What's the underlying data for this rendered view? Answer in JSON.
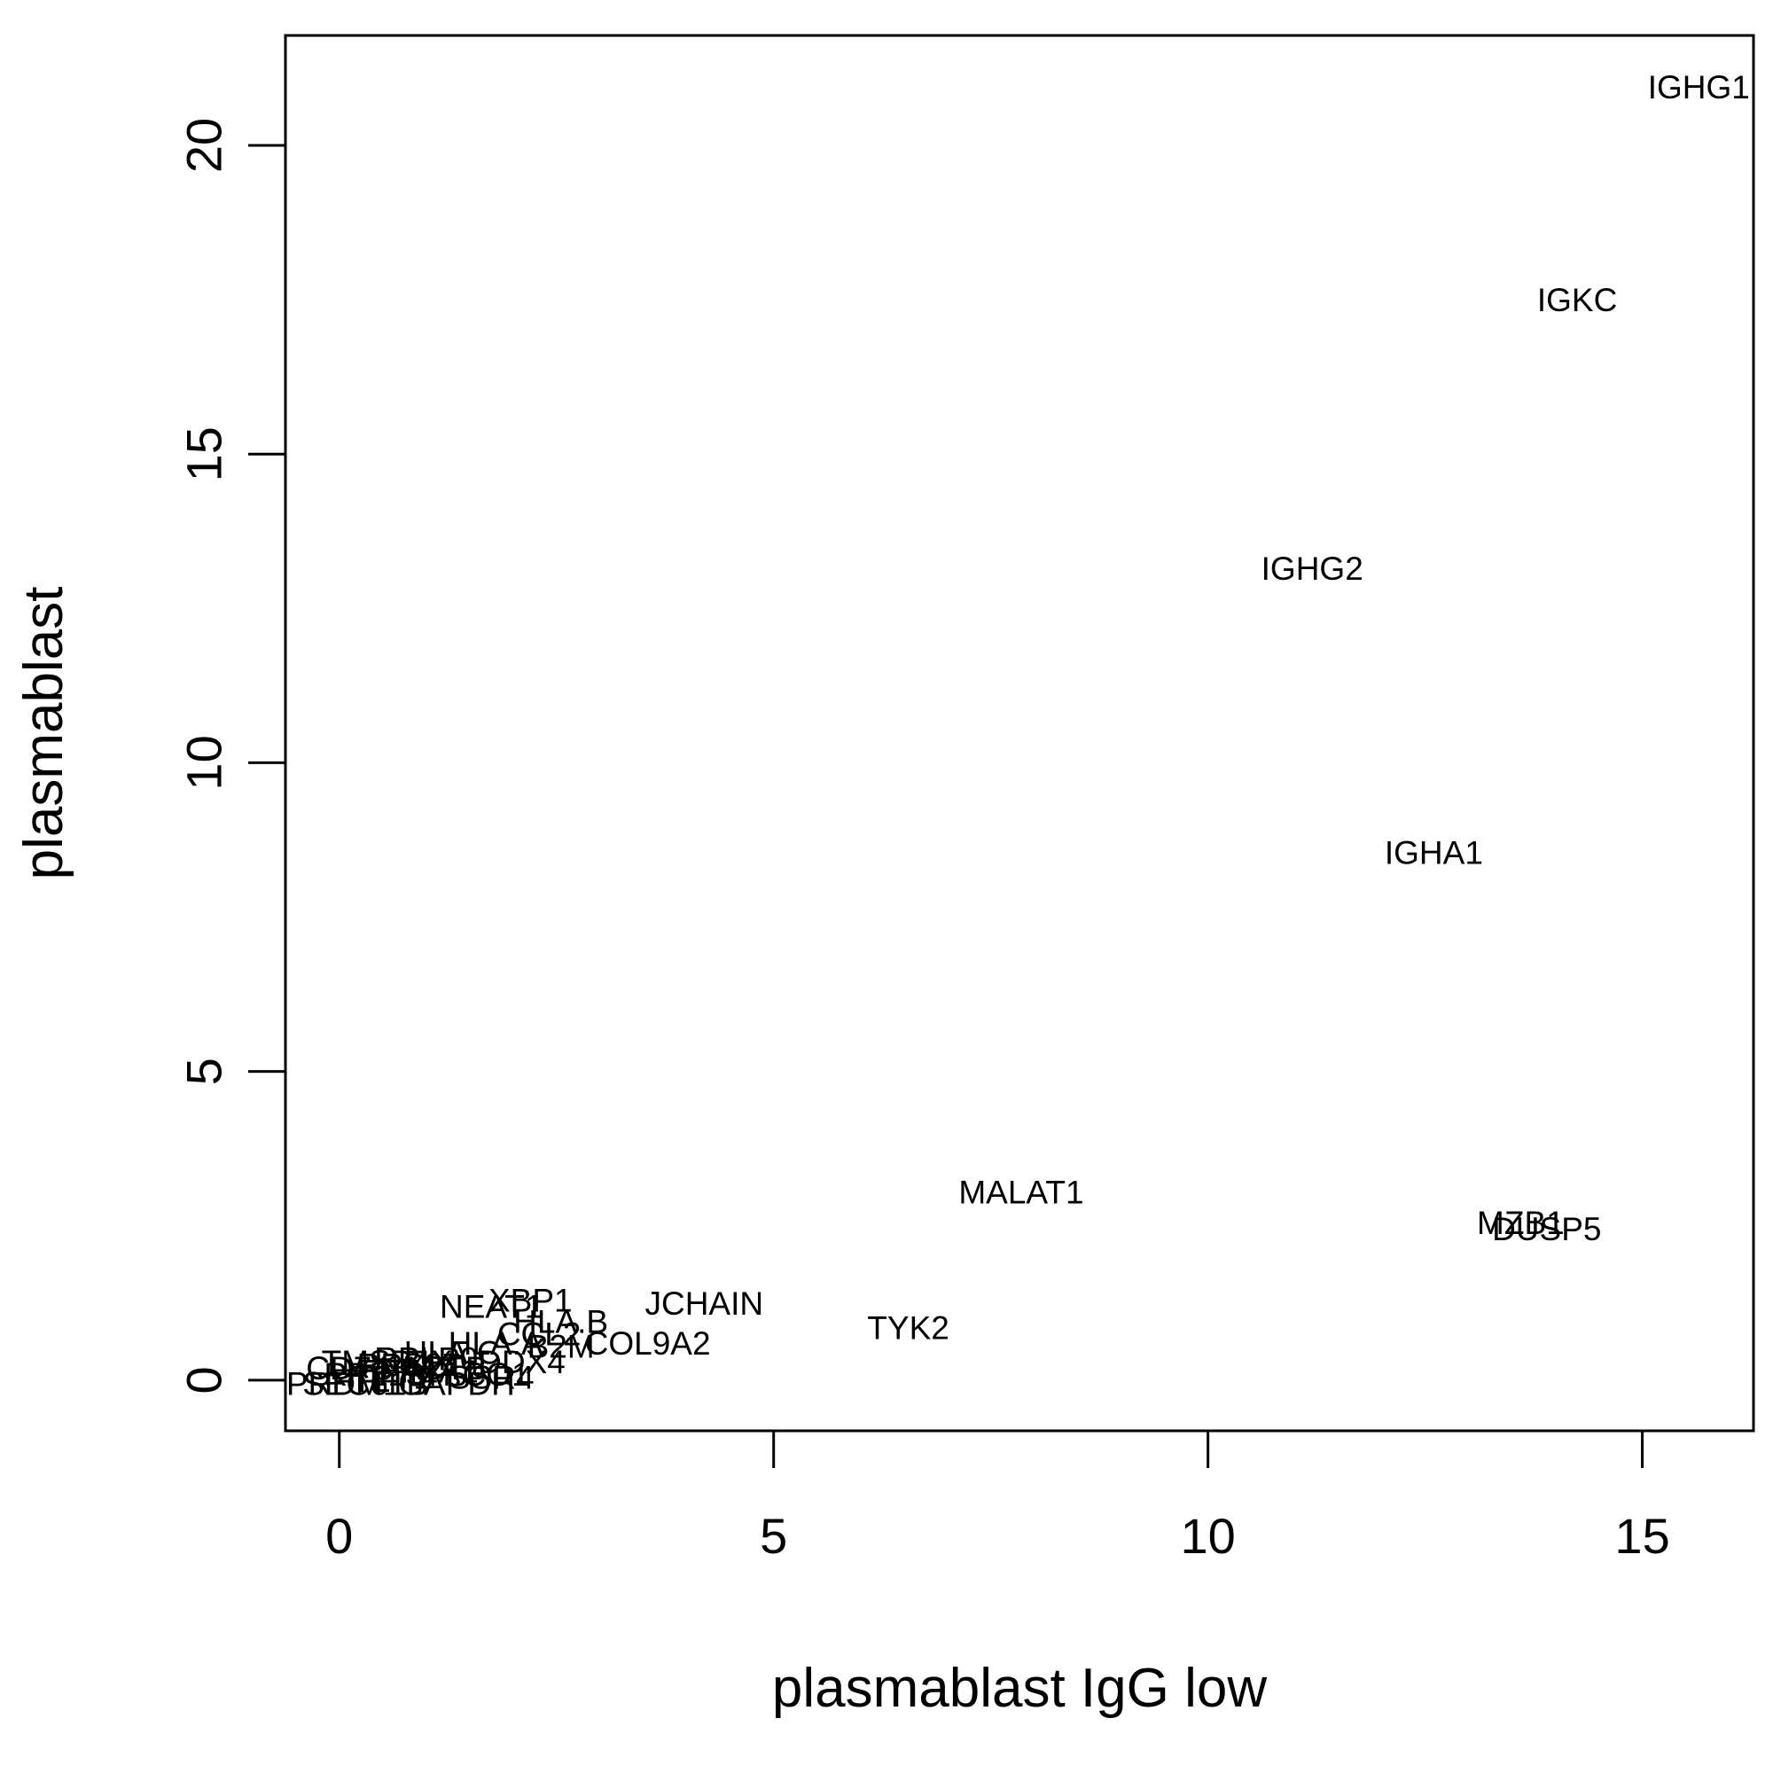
{
  "chart_data": {
    "type": "scatter",
    "title": "",
    "xlabel": "plasmablast IgG low",
    "ylabel": "plasmablast",
    "xlim": [
      -0.62,
      16.28
    ],
    "ylim": [
      -0.82,
      21.78
    ],
    "xticks": [
      0,
      5,
      10,
      15
    ],
    "yticks": [
      0,
      5,
      10,
      15,
      20
    ],
    "grid": false,
    "legend": "none",
    "points": [
      {
        "label": "IGHG1",
        "x": 15.65,
        "y": 20.95
      },
      {
        "label": "IGKC",
        "x": 14.25,
        "y": 17.5
      },
      {
        "label": "IGHG2",
        "x": 11.2,
        "y": 13.15
      },
      {
        "label": "IGHA1",
        "x": 12.6,
        "y": 8.55
      },
      {
        "label": "MALAT1",
        "x": 7.85,
        "y": 3.05
      },
      {
        "label": "MZB1",
        "x": 13.6,
        "y": 2.55
      },
      {
        "label": "DUSP5",
        "x": 13.9,
        "y": 2.45
      },
      {
        "label": "TYK2",
        "x": 6.55,
        "y": 0.85
      },
      {
        "label": "JCHAIN",
        "x": 4.2,
        "y": 1.25
      },
      {
        "label": "XBP1",
        "x": 2.2,
        "y": 1.3
      },
      {
        "label": "NEAT1",
        "x": 1.75,
        "y": 1.2
      },
      {
        "label": "HLA.B",
        "x": 2.55,
        "y": 0.95
      },
      {
        "label": "COL9A2",
        "x": 3.55,
        "y": 0.6
      },
      {
        "label": "HLA.A",
        "x": 1.8,
        "y": 0.6
      },
      {
        "label": "CCL2",
        "x": 2.3,
        "y": 0.75
      },
      {
        "label": "B2M",
        "x": 2.55,
        "y": 0.55
      },
      {
        "label": "HLA.C",
        "x": 1.3,
        "y": 0.45
      },
      {
        "label": "DDX4",
        "x": 2.1,
        "y": 0.3
      },
      {
        "label": "ACTB",
        "x": 1.2,
        "y": 0.2
      },
      {
        "label": "EEF1A1",
        "x": 0.9,
        "y": 0.15
      },
      {
        "label": "TPT1",
        "x": 0.6,
        "y": 0.05
      },
      {
        "label": "RPL13",
        "x": 0.4,
        "y": 0.1
      },
      {
        "label": "FTL",
        "x": 0.25,
        "y": 0.0
      },
      {
        "label": "CD74",
        "x": 0.1,
        "y": 0.2
      },
      {
        "label": "TMSB4X",
        "x": 0.55,
        "y": 0.3
      },
      {
        "label": "RPS27",
        "x": 0.8,
        "y": 0.25
      },
      {
        "label": "MT.CO1",
        "x": 1.5,
        "y": 0.1
      },
      {
        "label": "RPLP0",
        "x": 1.0,
        "y": 0.35
      },
      {
        "label": "SSR4",
        "x": 1.75,
        "y": 0.05
      },
      {
        "label": "SEC61B",
        "x": 0.3,
        "y": -0.05
      },
      {
        "label": "PRDM1",
        "x": 0.05,
        "y": -0.05
      },
      {
        "label": "GAPDH",
        "x": 1.35,
        "y": -0.05
      }
    ]
  }
}
